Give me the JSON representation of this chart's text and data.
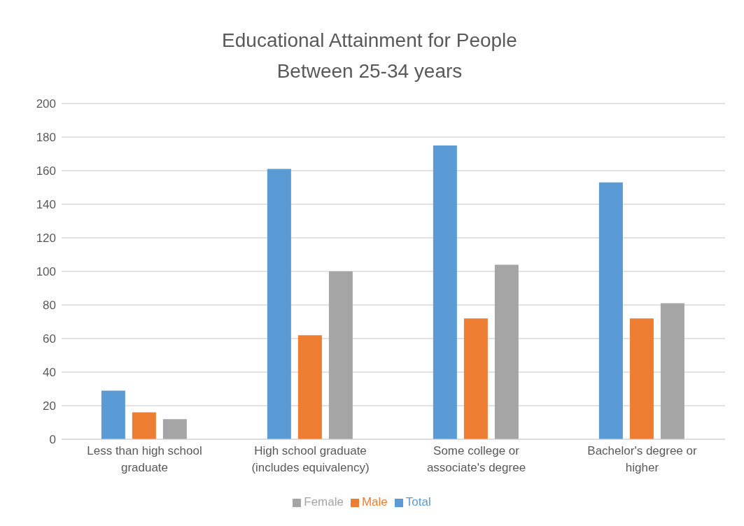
{
  "chart_data": {
    "type": "bar",
    "title": "Educational Attainment for People  Between 25-34 years",
    "categories": [
      "Less than high school graduate",
      "High school graduate (includes equivalency)",
      "Some college or associate's degree",
      "Bachelor's degree or higher"
    ],
    "series": [
      {
        "name": "Total",
        "color": "#5b9bd5",
        "values": [
          29,
          161,
          175,
          153
        ]
      },
      {
        "name": "Male",
        "color": "#ed7d31",
        "values": [
          16,
          62,
          72,
          72
        ]
      },
      {
        "name": "Female",
        "color": "#a5a5a5",
        "values": [
          12,
          100,
          104,
          81
        ]
      }
    ],
    "ylim": [
      0,
      200
    ],
    "yticks": [
      0,
      20,
      40,
      60,
      80,
      100,
      120,
      140,
      160,
      180,
      200
    ],
    "grid": "y",
    "legend": "bottom"
  }
}
